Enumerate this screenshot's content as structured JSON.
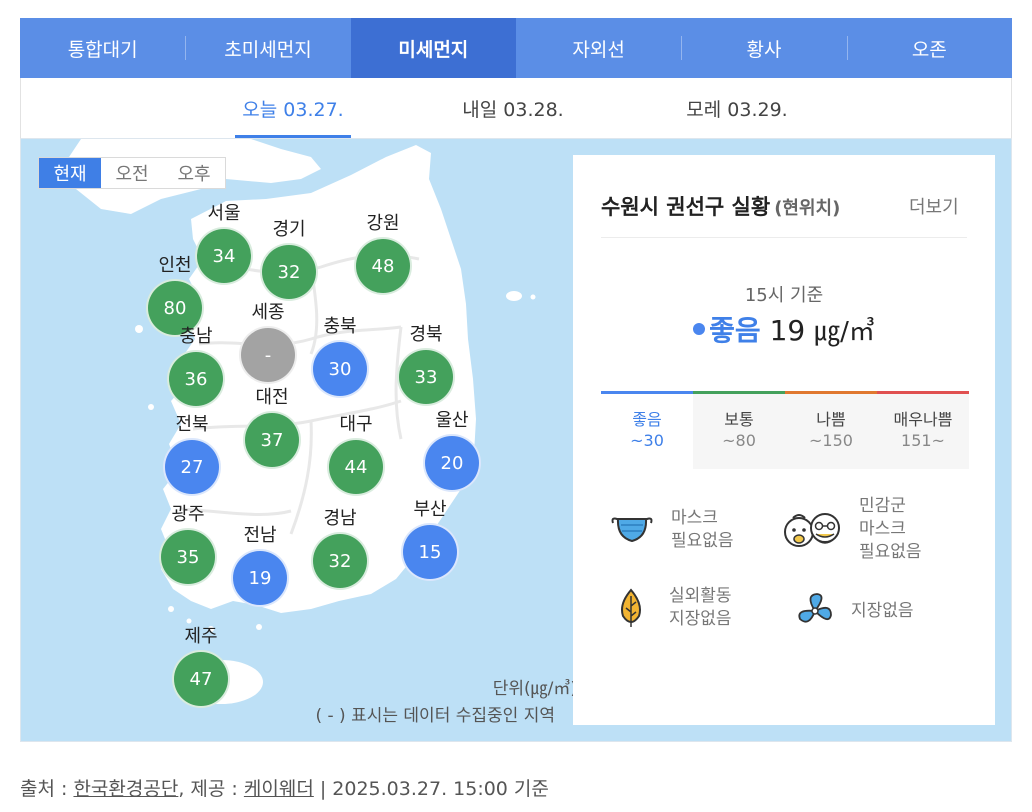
{
  "tabs": [
    "통합대기",
    "초미세먼지",
    "미세먼지",
    "자외선",
    "황사",
    "오존"
  ],
  "active_tab": "미세먼지",
  "days": [
    "오늘 03.27.",
    "내일 03.28.",
    "모레 03.29."
  ],
  "active_day": "오늘 03.27.",
  "time_toggle": [
    "현재",
    "오전",
    "오후"
  ],
  "active_time": "현재",
  "regions": [
    {
      "name": "서울",
      "value": "34",
      "status": "normal"
    },
    {
      "name": "경기",
      "value": "32",
      "status": "normal"
    },
    {
      "name": "강원",
      "value": "48",
      "status": "normal"
    },
    {
      "name": "인천",
      "value": "80",
      "status": "normal"
    },
    {
      "name": "세종",
      "value": "-",
      "status": "none"
    },
    {
      "name": "충북",
      "value": "30",
      "status": "good"
    },
    {
      "name": "충남",
      "value": "36",
      "status": "normal"
    },
    {
      "name": "경북",
      "value": "33",
      "status": "normal"
    },
    {
      "name": "대전",
      "value": "37",
      "status": "normal"
    },
    {
      "name": "전북",
      "value": "27",
      "status": "good"
    },
    {
      "name": "대구",
      "value": "44",
      "status": "normal"
    },
    {
      "name": "울산",
      "value": "20",
      "status": "good"
    },
    {
      "name": "광주",
      "value": "35",
      "status": "normal"
    },
    {
      "name": "전남",
      "value": "19",
      "status": "good"
    },
    {
      "name": "경남",
      "value": "32",
      "status": "normal"
    },
    {
      "name": "부산",
      "value": "15",
      "status": "good"
    },
    {
      "name": "제주",
      "value": "47",
      "status": "normal"
    }
  ],
  "status_colors": {
    "good": "#4a86ef",
    "normal": "#44a15c",
    "none": "#a3a3a3"
  },
  "map_unit": "단위(㎍/㎥)",
  "map_note": "( - ) 표시는 데이터 수집중인 지역",
  "panel": {
    "location": "수원시 권선구 실황",
    "location_sub": "(현위치)",
    "more": "더보기",
    "time": "15시 기준",
    "grade": "좋음",
    "value": "19",
    "unit": "㎍/㎥"
  },
  "legend": [
    {
      "label": "좋음",
      "range": "~30",
      "color": "#4a86ef"
    },
    {
      "label": "보통",
      "range": "~80",
      "color": "#44a15c"
    },
    {
      "label": "나쁨",
      "range": "~150",
      "color": "#e0782f"
    },
    {
      "label": "매우나쁨",
      "range": "151~",
      "color": "#e05050"
    }
  ],
  "advice": [
    {
      "icon": "mask-icon",
      "text": [
        "마스크",
        "필요없음"
      ]
    },
    {
      "icon": "sensitive-group-icon",
      "text": [
        "민감군",
        "마스크",
        "필요없음"
      ]
    },
    {
      "icon": "leaf-icon",
      "text": [
        "실외활동",
        "지장없음"
      ]
    },
    {
      "icon": "fan-icon",
      "text": [
        "지장없음"
      ]
    }
  ],
  "footer": {
    "source_label": "출처 : ",
    "source": "한국환경공단",
    "provider_label": ", 제공 : ",
    "provider": "케이웨더",
    "timestamp": " | 2025.03.27. 15:00 기준"
  }
}
